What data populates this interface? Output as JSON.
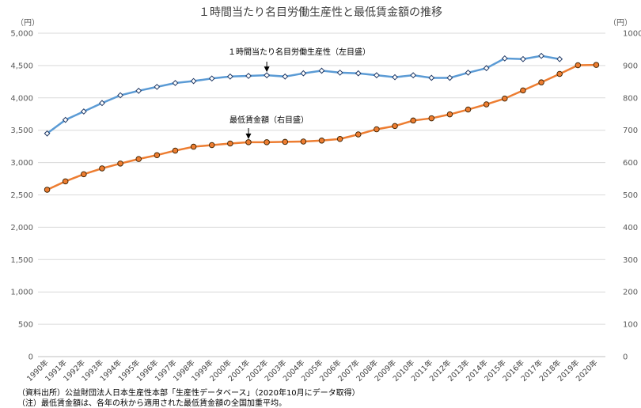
{
  "chart_data": {
    "type": "line",
    "title": "１時間当たり名目労働生産性と最低賃金額の推移",
    "y_unit_left": "（円）",
    "y_unit_right": "（円）",
    "ylim_left": [
      0,
      5000
    ],
    "ylim_right": [
      0,
      1000
    ],
    "yticks_left": [
      "0",
      "500",
      "1,000",
      "1,500",
      "2,000",
      "2,500",
      "3,000",
      "3,500",
      "4,000",
      "4,500",
      "5,000"
    ],
    "yticks_right": [
      "0",
      "100",
      "200",
      "300",
      "400",
      "500",
      "600",
      "700",
      "800",
      "900",
      "1000"
    ],
    "grid": true,
    "categories": [
      "1990年",
      "1991年",
      "1992年",
      "1993年",
      "1994年",
      "1995年",
      "1996年",
      "1997年",
      "1998年",
      "1999年",
      "2000年",
      "2001年",
      "2002年",
      "2003年",
      "2004年",
      "2005年",
      "2006年",
      "2007年",
      "2008年",
      "2009年",
      "2010年",
      "2011年",
      "2012年",
      "2013年",
      "2014年",
      "2015年",
      "2016年",
      "2017年",
      "2018年",
      "2019年",
      "2020年"
    ],
    "series": [
      {
        "name": "１時間当たり名目労働生産性（左目盛）",
        "axis": "left",
        "color": "#5b9bd5",
        "values": [
          3450,
          3660,
          3790,
          3920,
          4040,
          4110,
          4170,
          4230,
          4260,
          4300,
          4330,
          4340,
          4350,
          4330,
          4380,
          4420,
          4390,
          4380,
          4350,
          4320,
          4350,
          4310,
          4310,
          4390,
          4460,
          4610,
          4600,
          4650,
          4600,
          null,
          null
        ]
      },
      {
        "name": "最低賃金額（右目盛）",
        "axis": "right",
        "color": "#ed7d31",
        "values": [
          516,
          542,
          564,
          582,
          597,
          611,
          623,
          637,
          649,
          654,
          659,
          663,
          663,
          664,
          665,
          668,
          673,
          687,
          703,
          713,
          730,
          737,
          749,
          764,
          780,
          798,
          823,
          848,
          874,
          901,
          902
        ]
      }
    ],
    "annotations": [
      {
        "text": "１時間当たり名目労働生産性（左目盛）",
        "series": 0
      },
      {
        "text": "最低賃金額（右目盛）",
        "series": 1
      }
    ]
  },
  "notes": [
    "（資料出所）公益財団法人日本生産性本部「生産性データベース」（2020年10月にデータ取得）",
    "（注）最低賃金額は、各年の秋から適用された最低賃金額の全国加重平均。"
  ]
}
